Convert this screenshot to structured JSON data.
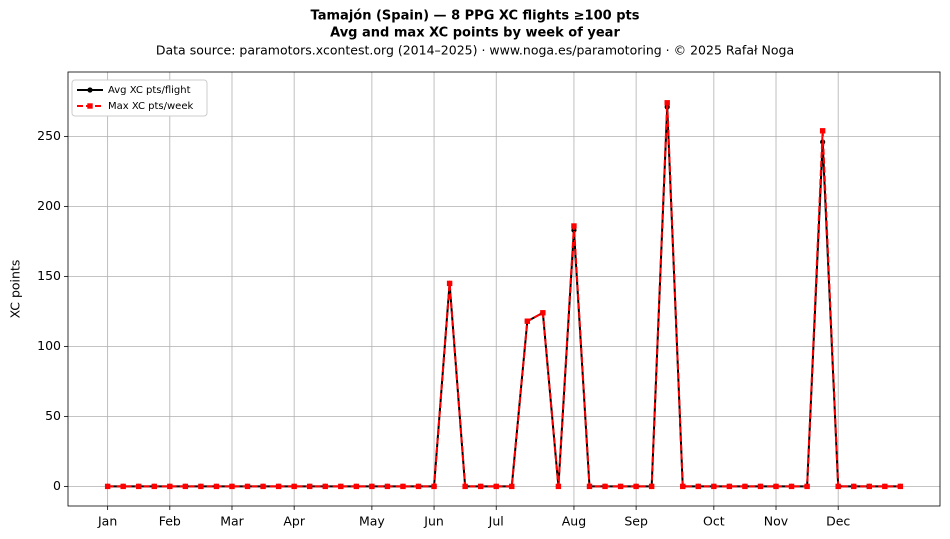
{
  "chart_data": {
    "type": "line",
    "title": "Tamajón (Spain)  —  8 PPG XC flights ≥100 pts",
    "subtitle": "Avg and max XC points by week of year",
    "source": "Data source: paramotors.xcontest.org (2014–2025)  ·  www.noga.es/paramotoring  ·  © 2025 Rafał Noga",
    "y_label": "XC points",
    "x": [
      1,
      2,
      3,
      4,
      5,
      6,
      7,
      8,
      9,
      10,
      11,
      12,
      13,
      14,
      15,
      16,
      17,
      18,
      19,
      20,
      21,
      22,
      23,
      24,
      25,
      26,
      27,
      28,
      29,
      30,
      31,
      32,
      33,
      34,
      35,
      36,
      37,
      38,
      39,
      40,
      41,
      42,
      43,
      44,
      45,
      46,
      47,
      48,
      49,
      50,
      51,
      52
    ],
    "series": [
      {
        "name": "Avg XC pts/flight",
        "color": "#000000",
        "style": "solid",
        "marker": "circle",
        "values": [
          0,
          0,
          0,
          0,
          0,
          0,
          0,
          0,
          0,
          0,
          0,
          0,
          0,
          0,
          0,
          0,
          0,
          0,
          0,
          0,
          0,
          0,
          145,
          0,
          0,
          0,
          0,
          118,
          124,
          0,
          183,
          0,
          0,
          0,
          0,
          0,
          271,
          0,
          0,
          0,
          0,
          0,
          0,
          0,
          0,
          0,
          246,
          0,
          0,
          0,
          0,
          0
        ]
      },
      {
        "name": "Max XC pts/week",
        "color": "#ff0000",
        "style": "dashed",
        "marker": "square",
        "values": [
          0,
          0,
          0,
          0,
          0,
          0,
          0,
          0,
          0,
          0,
          0,
          0,
          0,
          0,
          0,
          0,
          0,
          0,
          0,
          0,
          0,
          0,
          145,
          0,
          0,
          0,
          0,
          118,
          124,
          0,
          186,
          0,
          0,
          0,
          0,
          0,
          274,
          0,
          0,
          0,
          0,
          0,
          0,
          0,
          0,
          0,
          254,
          0,
          0,
          0,
          0,
          0
        ]
      }
    ],
    "xlim": [
      -1.55,
      54.55
    ],
    "xticks": [
      {
        "value": 1,
        "label": "Jan"
      },
      {
        "value": 5,
        "label": "Feb"
      },
      {
        "value": 9,
        "label": "Mar"
      },
      {
        "value": 13,
        "label": "Apr"
      },
      {
        "value": 18,
        "label": "May"
      },
      {
        "value": 22,
        "label": "Jun"
      },
      {
        "value": 26,
        "label": "Jul"
      },
      {
        "value": 31,
        "label": "Aug"
      },
      {
        "value": 35,
        "label": "Sep"
      },
      {
        "value": 40,
        "label": "Oct"
      },
      {
        "value": 44,
        "label": "Nov"
      },
      {
        "value": 48,
        "label": "Dec"
      }
    ],
    "ylim": [
      -14,
      296
    ],
    "yticks": [
      0,
      50,
      100,
      150,
      200,
      250
    ],
    "grid": true,
    "legend": "upper-left"
  }
}
